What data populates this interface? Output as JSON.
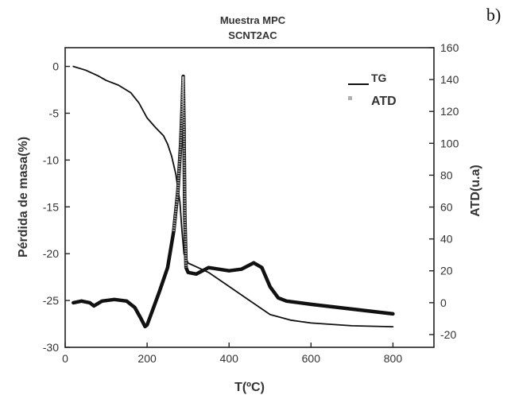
{
  "panel_label": "b)",
  "chart_data": {
    "type": "line",
    "title": "Muestra MPC",
    "subtitle": "SCNT2AC",
    "xlabel": "T(ºC)",
    "ylabel": "Pérdida de masa(%)",
    "y2label": "ATD(u.a)",
    "xlim": [
      0,
      900
    ],
    "ylim": [
      -30,
      2
    ],
    "y2lim": [
      -28,
      160
    ],
    "xticks": [
      0,
      200,
      400,
      600,
      800
    ],
    "yticks": [
      0,
      -5,
      -10,
      -15,
      -20,
      -25,
      -30
    ],
    "y2ticks": [
      160,
      140,
      120,
      100,
      80,
      60,
      40,
      20,
      0,
      -20
    ],
    "grid": false,
    "legend_position": "top-right",
    "series": [
      {
        "name": "TG",
        "axis": "left",
        "color": "#111111",
        "x": [
          20,
          50,
          80,
          100,
          130,
          160,
          180,
          200,
          220,
          240,
          250,
          260,
          270,
          280,
          285,
          290,
          295,
          300,
          320,
          350,
          400,
          450,
          500,
          550,
          600,
          700,
          800
        ],
        "y": [
          0,
          -0.4,
          -1.0,
          -1.5,
          -2.0,
          -2.8,
          -3.9,
          -5.5,
          -6.5,
          -7.4,
          -8.3,
          -9.6,
          -11.5,
          -14.5,
          -17.5,
          -20.0,
          -20.5,
          -21.0,
          -21.4,
          -22.0,
          -23.5,
          -25.0,
          -26.5,
          -27.1,
          -27.4,
          -27.7,
          -27.8
        ]
      },
      {
        "name": "ATD",
        "axis": "right",
        "color": "#b0b0b0",
        "x": [
          20,
          40,
          60,
          70,
          90,
          120,
          150,
          170,
          185,
          195,
          200,
          210,
          230,
          250,
          265,
          275,
          282,
          286,
          288,
          290,
          292,
          295,
          300,
          320,
          350,
          400,
          430,
          460,
          480,
          500,
          520,
          540,
          600,
          700,
          800
        ],
        "y": [
          0,
          1,
          0,
          -2,
          1,
          2,
          1,
          -3,
          -10,
          -15,
          -14,
          -7,
          7,
          22,
          45,
          70,
          100,
          125,
          142,
          110,
          55,
          22,
          19,
          18,
          22,
          20,
          21,
          25,
          22,
          10,
          3,
          1,
          -1,
          -4,
          -7
        ]
      }
    ]
  }
}
